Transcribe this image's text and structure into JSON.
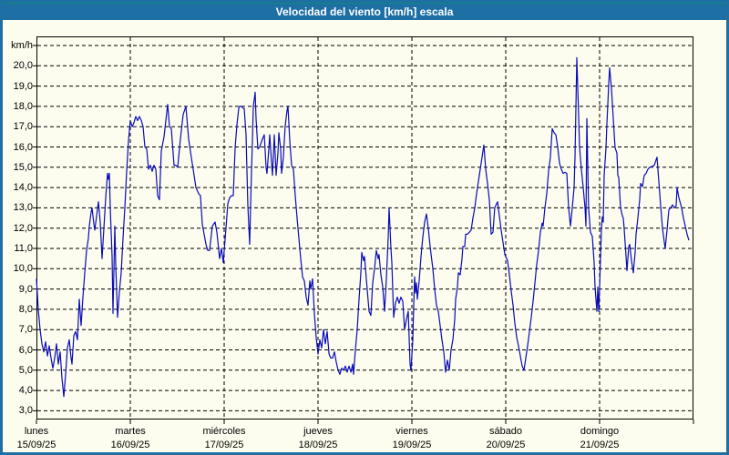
{
  "window": {
    "title": "Velocidad del viento [km/h] escala"
  },
  "chart_data": {
    "type": "line",
    "title": "Velocidad del viento [km/h] escala",
    "ylabel": "km/h",
    "xlabel": "",
    "ylim": [
      3,
      21
    ],
    "x_range_days": [
      0,
      7
    ],
    "grid": "dashed-black",
    "legend": "none",
    "line_color": "#0a0ab8",
    "y_axis": {
      "unit_label": "km/h",
      "ticks": [
        {
          "v": 20,
          "label": "20,0"
        },
        {
          "v": 19,
          "label": "19,0"
        },
        {
          "v": 18,
          "label": "18,0"
        },
        {
          "v": 17,
          "label": "17,0"
        },
        {
          "v": 16,
          "label": "16,0"
        },
        {
          "v": 15,
          "label": "15,0"
        },
        {
          "v": 14,
          "label": "14,0"
        },
        {
          "v": 13,
          "label": "13,0"
        },
        {
          "v": 12,
          "label": "12,0"
        },
        {
          "v": 11,
          "label": "11,0"
        },
        {
          "v": 10,
          "label": "10,0"
        },
        {
          "v": 9,
          "label": "9,0"
        },
        {
          "v": 8,
          "label": "8,0"
        },
        {
          "v": 7,
          "label": "7,0"
        },
        {
          "v": 6,
          "label": "6,0"
        },
        {
          "v": 5,
          "label": "5,0"
        },
        {
          "v": 4,
          "label": "4,0"
        },
        {
          "v": 3,
          "label": "3,0"
        }
      ]
    },
    "x_axis": {
      "days": [
        {
          "day": 0,
          "name": "lunes",
          "date": "15/09/25"
        },
        {
          "day": 1,
          "name": "martes",
          "date": "16/09/25"
        },
        {
          "day": 2,
          "name": "miércoles",
          "date": "17/09/25"
        },
        {
          "day": 3,
          "name": "jueves",
          "date": "18/09/25"
        },
        {
          "day": 4,
          "name": "viernes",
          "date": "19/09/25"
        },
        {
          "day": 5,
          "name": "sábado",
          "date": "20/09/25"
        },
        {
          "day": 6,
          "name": "domingo",
          "date": "21/09/25"
        }
      ]
    },
    "series_name": "Velocidad del viento",
    "points": [
      [
        0.0,
        9.5
      ],
      [
        0.019,
        8.0
      ],
      [
        0.039,
        7.0
      ],
      [
        0.058,
        6.3
      ],
      [
        0.078,
        5.9
      ],
      [
        0.097,
        6.4
      ],
      [
        0.117,
        5.7
      ],
      [
        0.136,
        6.2
      ],
      [
        0.155,
        5.6
      ],
      [
        0.175,
        5.1
      ],
      [
        0.194,
        5.6
      ],
      [
        0.214,
        6.3
      ],
      [
        0.233,
        5.3
      ],
      [
        0.252,
        5.9
      ],
      [
        0.272,
        4.6
      ],
      [
        0.291,
        3.7
      ],
      [
        0.311,
        4.8
      ],
      [
        0.33,
        6.1
      ],
      [
        0.35,
        6.5
      ],
      [
        0.369,
        5.6
      ],
      [
        0.379,
        5.3
      ],
      [
        0.398,
        6.7
      ],
      [
        0.417,
        6.9
      ],
      [
        0.437,
        6.5
      ],
      [
        0.456,
        8.5
      ],
      [
        0.476,
        7.2
      ],
      [
        0.495,
        8.6
      ],
      [
        0.515,
        9.8
      ],
      [
        0.534,
        10.9
      ],
      [
        0.553,
        11.5
      ],
      [
        0.563,
        12.1
      ],
      [
        0.583,
        12.8
      ],
      [
        0.592,
        13.0
      ],
      [
        0.612,
        12.2
      ],
      [
        0.621,
        11.9
      ],
      [
        0.641,
        12.6
      ],
      [
        0.66,
        13.3
      ],
      [
        0.68,
        12.3
      ],
      [
        0.699,
        10.5
      ],
      [
        0.718,
        12.0
      ],
      [
        0.738,
        13.5
      ],
      [
        0.757,
        14.7
      ],
      [
        0.767,
        14.4
      ],
      [
        0.777,
        14.7
      ],
      [
        0.786,
        13.0
      ],
      [
        0.806,
        10.6
      ],
      [
        0.816,
        7.8
      ],
      [
        0.835,
        12.1
      ],
      [
        0.845,
        10.2
      ],
      [
        0.864,
        7.6
      ],
      [
        0.883,
        8.8
      ],
      [
        0.903,
        9.8
      ],
      [
        0.922,
        11.5
      ],
      [
        0.942,
        13.0
      ],
      [
        0.961,
        14.8
      ],
      [
        0.981,
        16.3
      ],
      [
        1.0,
        17.3
      ],
      [
        1.019,
        17.0
      ],
      [
        1.039,
        17.2
      ],
      [
        1.058,
        17.5
      ],
      [
        1.078,
        17.3
      ],
      [
        1.097,
        17.5
      ],
      [
        1.117,
        17.3
      ],
      [
        1.136,
        17.0
      ],
      [
        1.155,
        16.0
      ],
      [
        1.175,
        15.9
      ],
      [
        1.194,
        14.9
      ],
      [
        1.214,
        15.1
      ],
      [
        1.233,
        14.8
      ],
      [
        1.252,
        15.1
      ],
      [
        1.272,
        14.9
      ],
      [
        1.291,
        13.6
      ],
      [
        1.311,
        13.4
      ],
      [
        1.33,
        15.8
      ],
      [
        1.359,
        16.5
      ],
      [
        1.379,
        17.3
      ],
      [
        1.398,
        18.1
      ],
      [
        1.417,
        17.0
      ],
      [
        1.437,
        16.9
      ],
      [
        1.466,
        15.1
      ],
      [
        1.485,
        15.1
      ],
      [
        1.505,
        15.0
      ],
      [
        1.534,
        16.4
      ],
      [
        1.563,
        17.6
      ],
      [
        1.592,
        18.0
      ],
      [
        1.621,
        16.4
      ],
      [
        1.65,
        15.5
      ],
      [
        1.67,
        14.9
      ],
      [
        1.699,
        14.0
      ],
      [
        1.728,
        13.7
      ],
      [
        1.748,
        13.6
      ],
      [
        1.767,
        12.2
      ],
      [
        1.786,
        11.7
      ],
      [
        1.806,
        11.2
      ],
      [
        1.825,
        10.9
      ],
      [
        1.845,
        10.9
      ],
      [
        1.874,
        12.1
      ],
      [
        1.903,
        12.3
      ],
      [
        1.922,
        11.8
      ],
      [
        1.951,
        10.5
      ],
      [
        1.971,
        11.0
      ],
      [
        1.99,
        10.3
      ],
      [
        2.019,
        12.0
      ],
      [
        2.039,
        13.2
      ],
      [
        2.058,
        13.5
      ],
      [
        2.078,
        13.6
      ],
      [
        2.097,
        13.6
      ],
      [
        2.107,
        14.8
      ],
      [
        2.117,
        16.0
      ],
      [
        2.136,
        17.1
      ],
      [
        2.155,
        17.9
      ],
      [
        2.165,
        18.0
      ],
      [
        2.184,
        18.0
      ],
      [
        2.204,
        17.9
      ],
      [
        2.214,
        17.9
      ],
      [
        2.233,
        16.6
      ],
      [
        2.243,
        14.8
      ],
      [
        2.252,
        13.1
      ],
      [
        2.272,
        11.2
      ],
      [
        2.282,
        13.1
      ],
      [
        2.291,
        14.8
      ],
      [
        2.301,
        16.3
      ],
      [
        2.311,
        18.0
      ],
      [
        2.33,
        18.7
      ],
      [
        2.34,
        17.4
      ],
      [
        2.359,
        15.9
      ],
      [
        2.379,
        16.0
      ],
      [
        2.408,
        16.4
      ],
      [
        2.427,
        16.6
      ],
      [
        2.447,
        15.0
      ],
      [
        2.456,
        14.7
      ],
      [
        2.476,
        15.9
      ],
      [
        2.485,
        16.6
      ],
      [
        2.505,
        15.2
      ],
      [
        2.515,
        14.6
      ],
      [
        2.524,
        15.6
      ],
      [
        2.534,
        16.6
      ],
      [
        2.553,
        14.6
      ],
      [
        2.573,
        15.7
      ],
      [
        2.583,
        16.7
      ],
      [
        2.602,
        15.9
      ],
      [
        2.612,
        14.7
      ],
      [
        2.631,
        15.5
      ],
      [
        2.65,
        17.0
      ],
      [
        2.67,
        17.8
      ],
      [
        2.68,
        18.0
      ],
      [
        2.699,
        16.3
      ],
      [
        2.718,
        15.1
      ],
      [
        2.738,
        14.9
      ],
      [
        2.757,
        13.6
      ],
      [
        2.777,
        12.5
      ],
      [
        2.796,
        11.5
      ],
      [
        2.816,
        10.5
      ],
      [
        2.835,
        9.6
      ],
      [
        2.854,
        9.4
      ],
      [
        2.874,
        8.6
      ],
      [
        2.893,
        8.2
      ],
      [
        2.913,
        9.4
      ],
      [
        2.922,
        9.0
      ],
      [
        2.942,
        9.5
      ],
      [
        2.961,
        7.8
      ],
      [
        2.981,
        6.6
      ],
      [
        3.0,
        5.8
      ],
      [
        3.019,
        6.5
      ],
      [
        3.039,
        6.1
      ],
      [
        3.058,
        7.0
      ],
      [
        3.078,
        6.3
      ],
      [
        3.097,
        6.9
      ],
      [
        3.117,
        5.8
      ],
      [
        3.136,
        5.6
      ],
      [
        3.155,
        5.6
      ],
      [
        3.175,
        5.9
      ],
      [
        3.194,
        5.4
      ],
      [
        3.214,
        5.0
      ],
      [
        3.233,
        4.8
      ],
      [
        3.252,
        5.1
      ],
      [
        3.272,
        5.0
      ],
      [
        3.291,
        5.2
      ],
      [
        3.311,
        4.9
      ],
      [
        3.33,
        5.2
      ],
      [
        3.35,
        4.9
      ],
      [
        3.369,
        5.3
      ],
      [
        3.379,
        4.8
      ],
      [
        3.398,
        6.0
      ],
      [
        3.417,
        7.0
      ],
      [
        3.437,
        8.5
      ],
      [
        3.456,
        9.8
      ],
      [
        3.466,
        10.8
      ],
      [
        3.485,
        10.4
      ],
      [
        3.495,
        10.6
      ],
      [
        3.515,
        9.5
      ],
      [
        3.544,
        7.9
      ],
      [
        3.563,
        7.7
      ],
      [
        3.583,
        9.3
      ],
      [
        3.602,
        10.0
      ],
      [
        3.621,
        10.9
      ],
      [
        3.641,
        10.5
      ],
      [
        3.65,
        10.7
      ],
      [
        3.67,
        9.7
      ],
      [
        3.689,
        9.1
      ],
      [
        3.709,
        7.9
      ],
      [
        3.728,
        9.5
      ],
      [
        3.748,
        11.5
      ],
      [
        3.757,
        13.0
      ],
      [
        3.777,
        11.0
      ],
      [
        3.786,
        10.3
      ],
      [
        3.806,
        7.6
      ],
      [
        3.825,
        8.3
      ],
      [
        3.845,
        8.6
      ],
      [
        3.864,
        8.3
      ],
      [
        3.883,
        8.6
      ],
      [
        3.903,
        8.4
      ],
      [
        3.922,
        7.0
      ],
      [
        3.942,
        7.5
      ],
      [
        3.961,
        7.9
      ],
      [
        3.981,
        5.3
      ],
      [
        3.99,
        5.0
      ],
      [
        4.01,
        6.5
      ],
      [
        4.019,
        8.2
      ],
      [
        4.029,
        9.6
      ],
      [
        4.039,
        8.8
      ],
      [
        4.049,
        9.3
      ],
      [
        4.058,
        8.5
      ],
      [
        4.078,
        9.4
      ],
      [
        4.097,
        10.6
      ],
      [
        4.117,
        11.6
      ],
      [
        4.136,
        12.3
      ],
      [
        4.155,
        12.7
      ],
      [
        4.175,
        12.0
      ],
      [
        4.194,
        11.1
      ],
      [
        4.223,
        10.0
      ],
      [
        4.243,
        9.0
      ],
      [
        4.262,
        8.2
      ],
      [
        4.282,
        7.9
      ],
      [
        4.301,
        7.2
      ],
      [
        4.32,
        6.5
      ],
      [
        4.34,
        5.9
      ],
      [
        4.359,
        4.9
      ],
      [
        4.379,
        5.5
      ],
      [
        4.398,
        5.0
      ],
      [
        4.417,
        6.0
      ],
      [
        4.437,
        6.5
      ],
      [
        4.456,
        7.5
      ],
      [
        4.466,
        8.5
      ],
      [
        4.485,
        9.1
      ],
      [
        4.495,
        9.8
      ],
      [
        4.515,
        9.7
      ],
      [
        4.534,
        10.5
      ],
      [
        4.544,
        11.1
      ],
      [
        4.563,
        11.1
      ],
      [
        4.573,
        11.7
      ],
      [
        4.592,
        11.7
      ],
      [
        4.612,
        11.8
      ],
      [
        4.631,
        11.9
      ],
      [
        4.65,
        12.5
      ],
      [
        4.67,
        13.0
      ],
      [
        4.689,
        13.7
      ],
      [
        4.709,
        14.3
      ],
      [
        4.728,
        14.9
      ],
      [
        4.748,
        15.5
      ],
      [
        4.767,
        16.1
      ],
      [
        4.786,
        14.9
      ],
      [
        4.806,
        14.2
      ],
      [
        4.825,
        13.4
      ],
      [
        4.845,
        11.7
      ],
      [
        4.864,
        11.8
      ],
      [
        4.883,
        13.0
      ],
      [
        4.913,
        13.3
      ],
      [
        4.932,
        12.6
      ],
      [
        4.951,
        11.9
      ],
      [
        4.971,
        11.3
      ],
      [
        4.99,
        10.7
      ],
      [
        5.019,
        10.4
      ],
      [
        5.039,
        9.7
      ],
      [
        5.058,
        8.9
      ],
      [
        5.078,
        8.2
      ],
      [
        5.097,
        7.3
      ],
      [
        5.117,
        6.6
      ],
      [
        5.136,
        6.2
      ],
      [
        5.155,
        5.7
      ],
      [
        5.175,
        5.2
      ],
      [
        5.194,
        5.0
      ],
      [
        5.214,
        5.6
      ],
      [
        5.233,
        6.2
      ],
      [
        5.252,
        6.9
      ],
      [
        5.272,
        7.6
      ],
      [
        5.291,
        8.4
      ],
      [
        5.311,
        9.3
      ],
      [
        5.33,
        10.2
      ],
      [
        5.35,
        10.9
      ],
      [
        5.369,
        11.8
      ],
      [
        5.388,
        12.25
      ],
      [
        5.398,
        12.1
      ],
      [
        5.417,
        13.0
      ],
      [
        5.437,
        13.7
      ],
      [
        5.456,
        14.8
      ],
      [
        5.476,
        15.5
      ],
      [
        5.495,
        16.9
      ],
      [
        5.515,
        16.7
      ],
      [
        5.534,
        16.6
      ],
      [
        5.553,
        16.0
      ],
      [
        5.573,
        15.2
      ],
      [
        5.592,
        14.9
      ],
      [
        5.612,
        14.7
      ],
      [
        5.631,
        14.75
      ],
      [
        5.65,
        14.7
      ],
      [
        5.67,
        13.0
      ],
      [
        5.689,
        12.1
      ],
      [
        5.709,
        13.0
      ],
      [
        5.728,
        14.0
      ],
      [
        5.738,
        15.5
      ],
      [
        5.757,
        20.4
      ],
      [
        5.777,
        17.5
      ],
      [
        5.786,
        16.0
      ],
      [
        5.806,
        14.9
      ],
      [
        5.825,
        14.0
      ],
      [
        5.845,
        13.0
      ],
      [
        5.854,
        12.1
      ],
      [
        5.864,
        17.4
      ],
      [
        5.883,
        13.0
      ],
      [
        5.903,
        11.8
      ],
      [
        5.922,
        11.6
      ],
      [
        5.942,
        10.3
      ],
      [
        5.951,
        9.1
      ],
      [
        5.971,
        7.9
      ],
      [
        5.981,
        9.1
      ],
      [
        5.99,
        7.9
      ],
      [
        6.0,
        9.1
      ],
      [
        6.019,
        12.0
      ],
      [
        6.029,
        12.55
      ],
      [
        6.039,
        12.3
      ],
      [
        6.049,
        14.6
      ],
      [
        6.068,
        15.95
      ],
      [
        6.078,
        17.15
      ],
      [
        6.087,
        18.1
      ],
      [
        6.097,
        19.1
      ],
      [
        6.107,
        19.9
      ],
      [
        6.126,
        18.9
      ],
      [
        6.146,
        17.4
      ],
      [
        6.165,
        15.95
      ],
      [
        6.184,
        15.7
      ],
      [
        6.194,
        14.6
      ],
      [
        6.204,
        14.5
      ],
      [
        6.223,
        13.0
      ],
      [
        6.243,
        12.6
      ],
      [
        6.252,
        12.5
      ],
      [
        6.262,
        11.95
      ],
      [
        6.281,
        10.7
      ],
      [
        6.291,
        9.9
      ],
      [
        6.311,
        11.1
      ],
      [
        6.32,
        11.2
      ],
      [
        6.34,
        10.4
      ],
      [
        6.359,
        9.8
      ],
      [
        6.379,
        10.8
      ],
      [
        6.388,
        11.7
      ],
      [
        6.408,
        12.5
      ],
      [
        6.427,
        13.4
      ],
      [
        6.437,
        14.2
      ],
      [
        6.456,
        14.05
      ],
      [
        6.476,
        14.6
      ],
      [
        6.495,
        14.7
      ],
      [
        6.515,
        14.9
      ],
      [
        6.534,
        15.0
      ],
      [
        6.563,
        15.05
      ],
      [
        6.583,
        15.1
      ],
      [
        6.612,
        15.5
      ],
      [
        6.631,
        14.3
      ],
      [
        6.65,
        13.1
      ],
      [
        6.67,
        12.0
      ],
      [
        6.689,
        11.3
      ],
      [
        6.699,
        11.0
      ],
      [
        6.718,
        11.9
      ],
      [
        6.738,
        12.9
      ],
      [
        6.757,
        13.0
      ],
      [
        6.777,
        13.15
      ],
      [
        6.796,
        13.0
      ],
      [
        6.816,
        13.1
      ],
      [
        6.825,
        14.0
      ],
      [
        6.845,
        13.5
      ],
      [
        6.874,
        13.0
      ],
      [
        6.893,
        12.5
      ],
      [
        6.913,
        12.1
      ],
      [
        6.932,
        11.7
      ],
      [
        6.951,
        11.4
      ]
    ]
  }
}
